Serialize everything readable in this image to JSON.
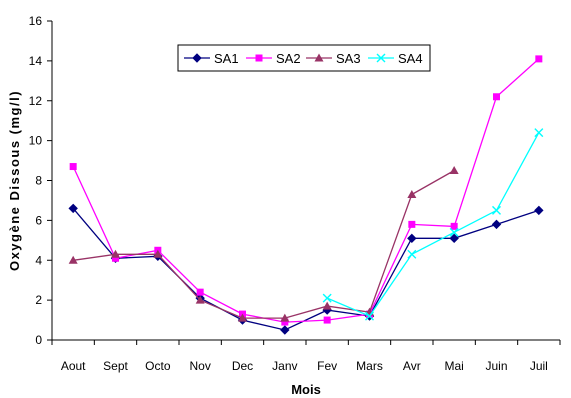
{
  "chart_data": {
    "type": "line",
    "categories": [
      "Aout",
      "Sept",
      "Octo",
      "Nov",
      "Dec",
      "Janv",
      "Fev",
      "Mars",
      "Avr",
      "Mai",
      "Juin",
      "Juil"
    ],
    "xlabel": "Mois",
    "ylabel": "Oxygène Dissous (mg/l)",
    "ylim": [
      0,
      16
    ],
    "yticks": [
      0,
      2,
      4,
      6,
      8,
      10,
      12,
      14,
      16
    ],
    "grid": false,
    "legend_position": "top-center",
    "series": [
      {
        "name": "SA1",
        "color": "#000080",
        "marker": "diamond",
        "values": [
          6.6,
          4.1,
          4.2,
          2.1,
          1.0,
          0.5,
          1.5,
          1.2,
          5.1,
          5.1,
          5.8,
          6.5
        ]
      },
      {
        "name": "SA2",
        "color": "#ff00ff",
        "marker": "square",
        "values": [
          8.7,
          4.1,
          4.5,
          2.4,
          1.3,
          0.9,
          1.0,
          1.3,
          5.8,
          5.7,
          12.2,
          14.1
        ]
      },
      {
        "name": "SA3",
        "color": "#993366",
        "marker": "triangle",
        "values": [
          4.0,
          4.3,
          4.3,
          2.0,
          1.1,
          1.1,
          1.7,
          1.4,
          7.3,
          8.5,
          null,
          null
        ]
      },
      {
        "name": "SA4",
        "color": "#00ffff",
        "marker": "x",
        "values": [
          null,
          null,
          null,
          null,
          null,
          null,
          2.1,
          1.2,
          4.3,
          5.4,
          6.5,
          10.4
        ]
      }
    ]
  }
}
